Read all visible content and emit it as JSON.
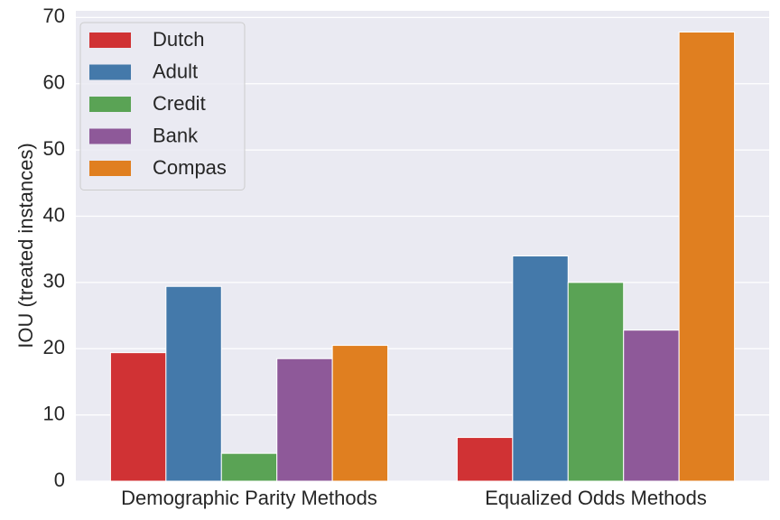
{
  "chart_data": {
    "type": "bar",
    "title": "",
    "xlabel": "",
    "ylabel": "IOU (treated instances)",
    "categories": [
      "Demographic Parity Methods",
      "Equalized Odds Methods"
    ],
    "series": [
      {
        "name": "Dutch",
        "color": "#d03234",
        "values": [
          19.4,
          6.6
        ]
      },
      {
        "name": "Adult",
        "color": "#4479aa",
        "values": [
          29.4,
          34.0
        ]
      },
      {
        "name": "Credit",
        "color": "#5aa355",
        "values": [
          4.2,
          30.0
        ]
      },
      {
        "name": "Bank",
        "color": "#8e5999",
        "values": [
          18.5,
          22.8
        ]
      },
      {
        "name": "Compas",
        "color": "#e07f20",
        "values": [
          20.5,
          67.8
        ]
      }
    ],
    "ylim": [
      0,
      71
    ],
    "yticks": [
      0,
      10,
      20,
      30,
      40,
      50,
      60,
      70
    ],
    "grid": true,
    "legend": "top-left",
    "background": "#eaeaf2"
  }
}
